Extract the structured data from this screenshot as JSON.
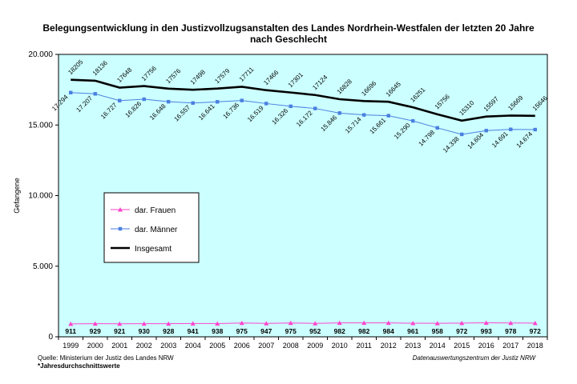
{
  "title_line1": "Belegungsentwicklung in den Justizvollzugsanstalten des Landes Nordrhein-Westfalen der letzten 20 Jahre",
  "title_line2": "nach Geschlecht",
  "source": "Quelle: Ministerium der Justiz des Landes NRW",
  "note": "*Jahresdurchschnittswerte",
  "organization": "Datenauswertungszentrum der Justiz NRW",
  "colors": {
    "background": "#ccffff",
    "frauen": "#ff44cc",
    "maenner": "#4a7fe0",
    "insgesamt": "#000000"
  },
  "chart_data": {
    "type": "line",
    "title": "Belegungsentwicklung in den Justizvollzugsanstalten des Landes Nordrhein-Westfalen der letzten 20 Jahre nach Geschlecht",
    "xlabel": "",
    "ylabel": "Gefangene",
    "ylim": [
      0,
      20000
    ],
    "yticks": [
      "0",
      "5.000",
      "10.000",
      "15.000",
      "20.000"
    ],
    "grid": false,
    "legend_position": "left-middle",
    "x": [
      "1999",
      "2000",
      "2001",
      "2002",
      "2003",
      "2004",
      "2005",
      "2006",
      "2007",
      "2008",
      "2009",
      "2010",
      "2011",
      "2012",
      "2013",
      "2014",
      "2015",
      "2016",
      "2017",
      "2018"
    ],
    "series": [
      {
        "name": "dar. Frauen",
        "marker": "triangle",
        "values": [
          911,
          929,
          921,
          930,
          928,
          941,
          938,
          975,
          947,
          975,
          952,
          982,
          982,
          984,
          961,
          958,
          972,
          993,
          978,
          972
        ],
        "labels": [
          "911",
          "929",
          "921",
          "930",
          "928",
          "941",
          "938",
          "975",
          "947",
          "975",
          "952",
          "982",
          "982",
          "984",
          "961",
          "958",
          "972",
          "993",
          "978",
          "972"
        ]
      },
      {
        "name": "dar. Männer",
        "marker": "square",
        "values": [
          17294,
          17207,
          16727,
          16826,
          16648,
          16557,
          16641,
          16736,
          16519,
          16326,
          16172,
          15846,
          15714,
          15661,
          15290,
          14798,
          14338,
          14604,
          14691,
          14674
        ],
        "labels": [
          "17.294",
          "17.207",
          "16.727",
          "16.826",
          "16.648",
          "16.557",
          "16.641",
          "16.736",
          "16.519",
          "16.326",
          "16.172",
          "15.846",
          "15.714",
          "15.661",
          "15.290",
          "14.798",
          "14.338",
          "14.604",
          "14.691",
          "14.674"
        ]
      },
      {
        "name": "Insgesamt",
        "marker": "none",
        "values": [
          18205,
          18136,
          17648,
          17756,
          17576,
          17498,
          17579,
          17711,
          17466,
          17301,
          17124,
          16828,
          16696,
          16645,
          16251,
          15756,
          15310,
          15597,
          15669,
          15646
        ],
        "labels": [
          "18205",
          "18136",
          "17648",
          "17756",
          "17576",
          "17498",
          "17579",
          "17711",
          "17466",
          "17301",
          "17124",
          "16828",
          "16696",
          "16645",
          "16251",
          "15756",
          "15310",
          "15597",
          "15669",
          "15646"
        ]
      }
    ]
  }
}
